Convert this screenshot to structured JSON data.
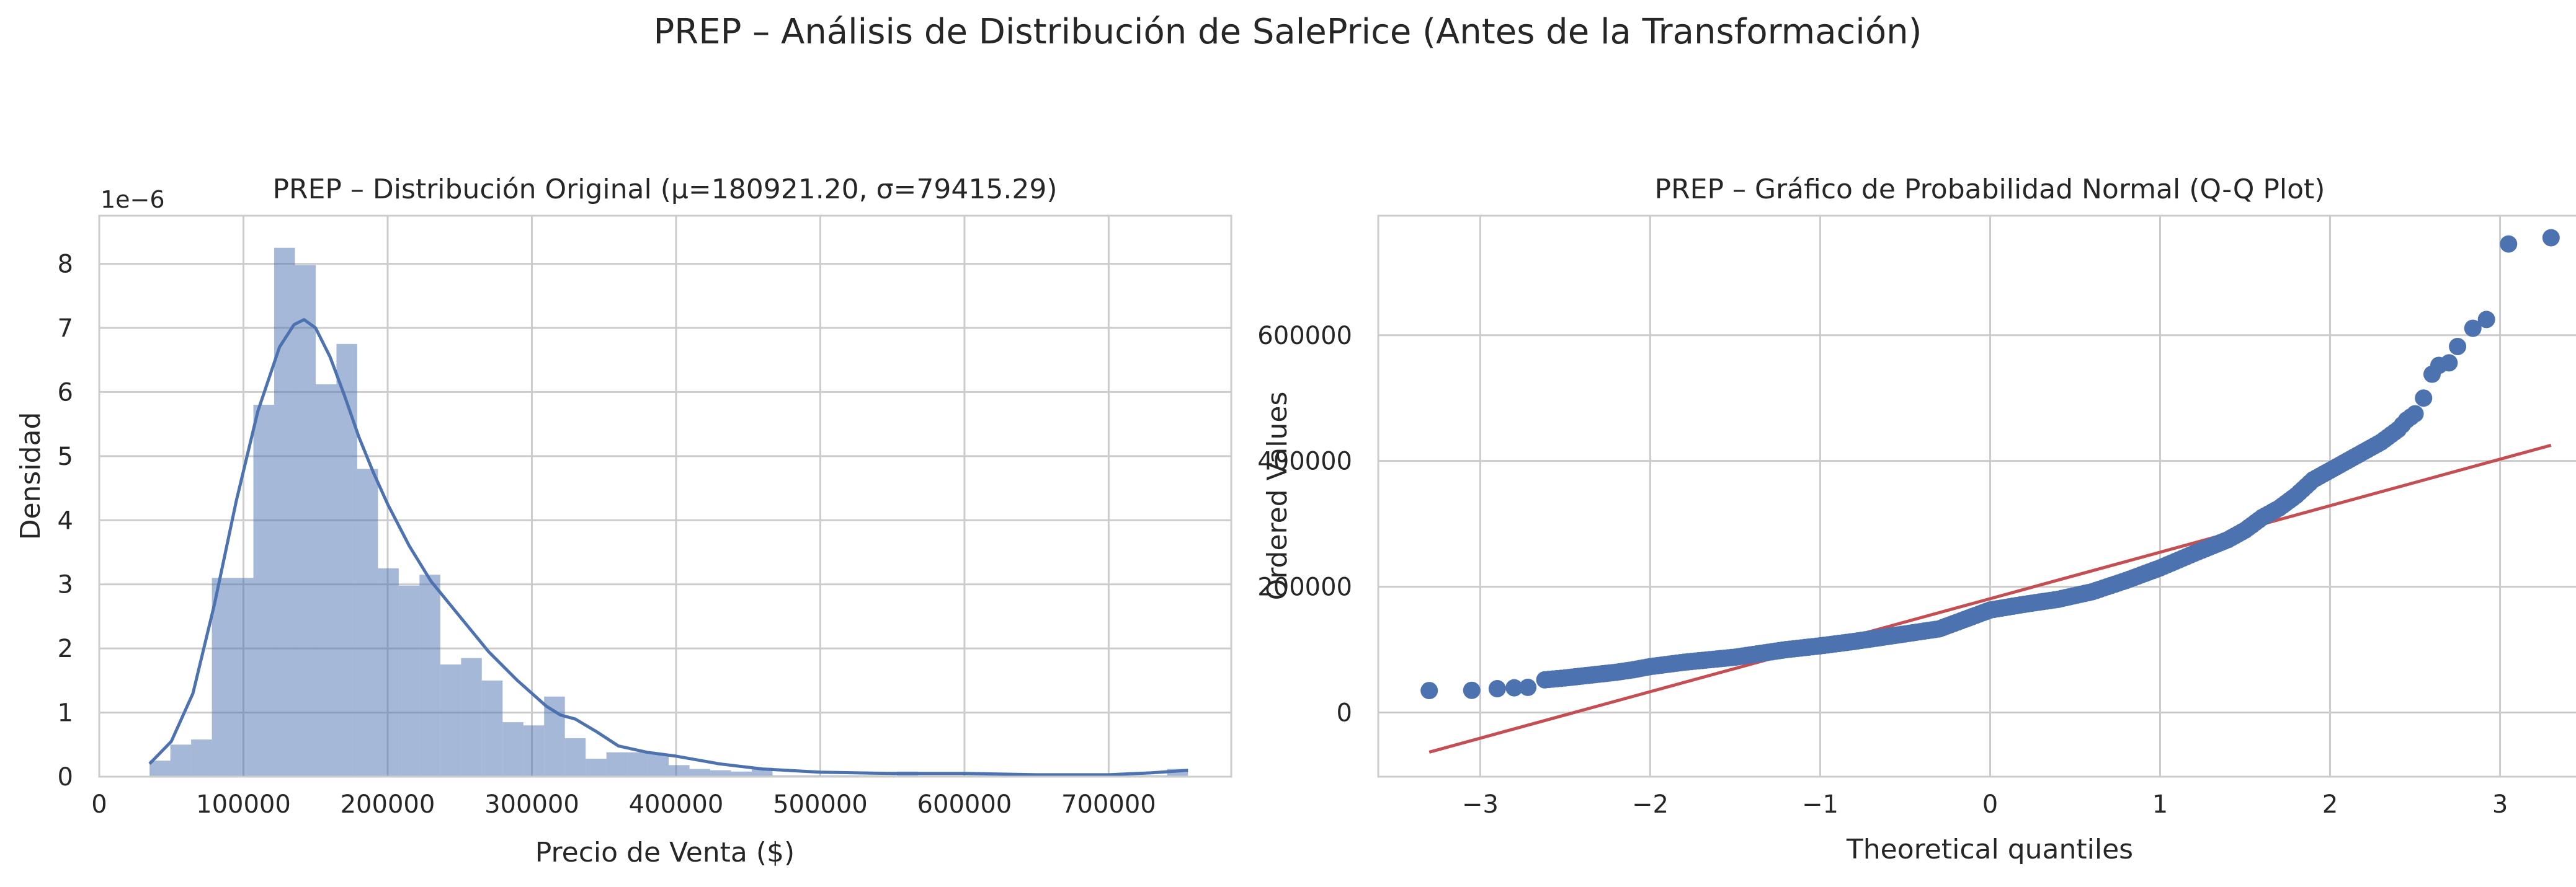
{
  "figure": {
    "suptitle": "PREP – Análisis de Distribución de SalePrice (Antes de la Transformación)"
  },
  "chart_data": [
    {
      "type": "bar",
      "subtype": "histogram_with_kde",
      "title": "PREP – Distribución Original (μ=180921.20, σ=79415.29)",
      "xlabel": "Precio de Venta ($)",
      "ylabel": "Densidad",
      "offset_text": "1e−6",
      "y_multiplier": 1e-06,
      "xlim": [
        0,
        785000
      ],
      "ylim": [
        0,
        8.75
      ],
      "x_ticks": [
        0,
        100000,
        200000,
        300000,
        400000,
        500000,
        600000,
        700000
      ],
      "y_ticks": [
        0,
        1,
        2,
        3,
        4,
        5,
        6,
        7,
        8
      ],
      "grid": true,
      "bin_edges": [
        34900,
        49300,
        63700,
        78100,
        92500,
        106900,
        121300,
        135700,
        150100,
        164500,
        178900,
        193300,
        207700,
        222100,
        236500,
        250900,
        265300,
        279700,
        294100,
        308500,
        322900,
        337300,
        351700,
        366100,
        380500,
        394900,
        409300,
        423700,
        438100,
        452500,
        466900,
        481300,
        495700,
        510100,
        524500,
        538900,
        553300,
        567700,
        582100,
        596500,
        610900,
        625300,
        639700,
        654100,
        668500,
        682900,
        697300,
        711700,
        726100,
        740500,
        755000
      ],
      "values": [
        0.25,
        0.5,
        0.58,
        3.1,
        3.1,
        5.8,
        8.25,
        7.98,
        6.12,
        6.75,
        4.8,
        3.25,
        2.98,
        3.15,
        1.75,
        1.85,
        1.5,
        0.85,
        0.8,
        1.25,
        0.6,
        0.28,
        0.38,
        0.38,
        0.35,
        0.18,
        0.12,
        0.1,
        0.08,
        0.14,
        0.02,
        0.02,
        0.02,
        0.02,
        0.02,
        0.02,
        0.08,
        0.02,
        0.02,
        0.02,
        0.02,
        0.02,
        0.02,
        0.02,
        0.02,
        0.02,
        0.02,
        0.02,
        0.02,
        0.12
      ],
      "kde": {
        "x": [
          34900,
          50000,
          65000,
          80000,
          95000,
          110000,
          125000,
          135000,
          142000,
          150000,
          160000,
          170000,
          180000,
          190000,
          200000,
          215000,
          230000,
          250000,
          270000,
          290000,
          310000,
          320000,
          330000,
          345000,
          360000,
          380000,
          400000,
          430000,
          460000,
          500000,
          550000,
          600000,
          650000,
          700000,
          730000,
          755000
        ],
        "y": [
          0.2,
          0.55,
          1.3,
          2.7,
          4.3,
          5.7,
          6.7,
          7.05,
          7.13,
          7.0,
          6.55,
          5.95,
          5.3,
          4.75,
          4.25,
          3.6,
          3.05,
          2.5,
          1.95,
          1.5,
          1.1,
          0.96,
          0.9,
          0.7,
          0.48,
          0.38,
          0.32,
          0.2,
          0.12,
          0.07,
          0.05,
          0.05,
          0.03,
          0.03,
          0.06,
          0.1
        ]
      },
      "colors": {
        "bars": "#4C72B0",
        "bars_alpha": 0.5,
        "kde": "#4C72B0"
      }
    },
    {
      "type": "scatter",
      "subtype": "qq_plot",
      "title": "PREP – Gráfico de Probabilidad Normal (Q-Q Plot)",
      "xlabel": "Theoretical quantiles",
      "ylabel": "Ordered Values",
      "xlim": [
        -3.6,
        3.6
      ],
      "ylim": [
        -102000,
        790000
      ],
      "x_ticks": [
        -3,
        -2,
        -1,
        0,
        1,
        2,
        3
      ],
      "x_tick_labels": [
        "−3",
        "−2",
        "−1",
        "0",
        "1",
        "2",
        "3"
      ],
      "y_ticks": [
        0,
        200000,
        400000,
        600000
      ],
      "grid": true,
      "points": [
        [
          -3.3,
          34900
        ],
        [
          -3.05,
          35311
        ],
        [
          -2.9,
          37900
        ],
        [
          -2.8,
          39300
        ],
        [
          -2.72,
          40000
        ],
        [
          -2.62,
          52000
        ],
        [
          -2.5,
          55000
        ],
        [
          -2.4,
          58000
        ],
        [
          -2.3,
          61000
        ],
        [
          -2.2,
          64000
        ],
        [
          -2.1,
          68000
        ],
        [
          -2.0,
          73000
        ],
        [
          -1.8,
          80000
        ],
        [
          -1.5,
          88000
        ],
        [
          -1.2,
          100000
        ],
        [
          -1.0,
          106000
        ],
        [
          -0.8,
          113000
        ],
        [
          -0.5,
          125000
        ],
        [
          -0.3,
          133000
        ],
        [
          0.0,
          163000
        ],
        [
          0.2,
          172000
        ],
        [
          0.4,
          180000
        ],
        [
          0.6,
          192000
        ],
        [
          0.8,
          210000
        ],
        [
          1.0,
          230000
        ],
        [
          1.2,
          253000
        ],
        [
          1.4,
          275000
        ],
        [
          1.5,
          290000
        ],
        [
          1.6,
          310000
        ],
        [
          1.7,
          325000
        ],
        [
          1.8,
          345000
        ],
        [
          1.9,
          370000
        ],
        [
          2.0,
          385000
        ],
        [
          2.1,
          400000
        ],
        [
          2.2,
          415000
        ],
        [
          2.3,
          430000
        ],
        [
          2.4,
          450000
        ],
        [
          2.45,
          465000
        ],
        [
          2.5,
          475000
        ],
        [
          2.55,
          500000
        ],
        [
          2.6,
          538000
        ],
        [
          2.64,
          552000
        ],
        [
          2.7,
          556000
        ],
        [
          2.75,
          582000
        ],
        [
          2.84,
          611000
        ],
        [
          2.92,
          625000
        ],
        [
          3.05,
          745000
        ],
        [
          3.3,
          755000
        ]
      ],
      "fit_line": {
        "x": [
          -3.3,
          3.3
        ],
        "y": [
          -63000,
          425000
        ]
      },
      "colors": {
        "points": "#4C72B0",
        "fit_line": "#C44E52"
      }
    }
  ]
}
